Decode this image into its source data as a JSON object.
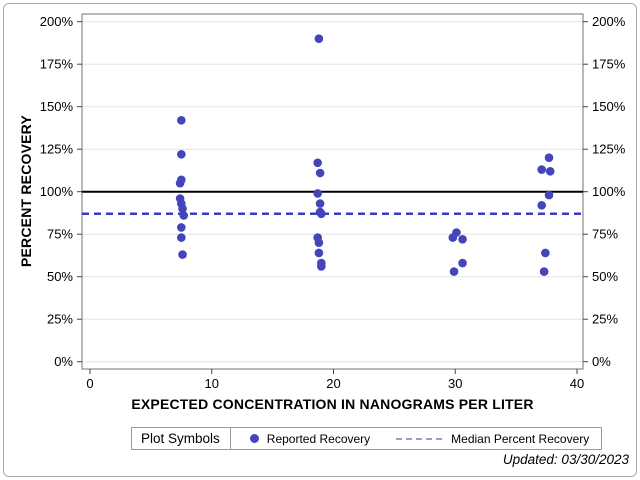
{
  "chart_data": {
    "type": "scatter",
    "title": "",
    "xlabel": "EXPECTED CONCENTRATION IN NANOGRAMS PER LITER",
    "ylabel": "PERCENT RECOVERY",
    "xlim": [
      0,
      40
    ],
    "ylim": [
      0,
      200
    ],
    "grid": true,
    "y_axis_mirrored": true,
    "x_ticks": {
      "values": [
        0,
        10,
        20,
        30,
        40
      ],
      "labels": [
        "0",
        "10",
        "20",
        "30",
        "40"
      ]
    },
    "y_ticks": {
      "values": [
        0,
        25,
        50,
        75,
        100,
        125,
        150,
        175,
        200
      ],
      "labels": [
        "0%",
        "25%",
        "50%",
        "75%",
        "100%",
        "125%",
        "150%",
        "175%",
        "200%"
      ]
    },
    "series": [
      {
        "name": "Reported Recovery",
        "marker": "filled-circle",
        "color": "#4444bb",
        "points": [
          [
            7.5,
            142
          ],
          [
            7.5,
            122
          ],
          [
            7.5,
            107
          ],
          [
            7.4,
            105
          ],
          [
            7.4,
            96
          ],
          [
            7.5,
            93
          ],
          [
            7.6,
            90
          ],
          [
            7.7,
            86
          ],
          [
            7.5,
            79
          ],
          [
            7.5,
            73
          ],
          [
            7.6,
            63
          ],
          [
            18.8,
            190
          ],
          [
            18.7,
            117
          ],
          [
            18.9,
            111
          ],
          [
            18.7,
            99
          ],
          [
            18.9,
            93
          ],
          [
            18.9,
            88
          ],
          [
            19.0,
            87
          ],
          [
            18.7,
            73
          ],
          [
            18.8,
            70
          ],
          [
            18.8,
            64
          ],
          [
            19.0,
            58
          ],
          [
            19.0,
            56
          ],
          [
            30.1,
            76
          ],
          [
            29.8,
            73
          ],
          [
            30.6,
            72
          ],
          [
            30.6,
            58
          ],
          [
            29.9,
            53
          ],
          [
            37.7,
            120
          ],
          [
            37.1,
            113
          ],
          [
            37.8,
            112
          ],
          [
            37.7,
            98
          ],
          [
            37.1,
            92
          ],
          [
            37.4,
            64
          ],
          [
            37.3,
            53
          ]
        ]
      }
    ],
    "reference_lines": [
      {
        "name": "100 Percent Recovery",
        "y": 100,
        "style": "solid",
        "color": "#000000",
        "width": 2
      },
      {
        "name": "Median Percent Recovery",
        "y": 87,
        "style": "dashed",
        "color": "#3b3bc4",
        "width": 2.5
      }
    ],
    "legend_position": "bottom"
  },
  "legend": {
    "title": "Plot Symbols",
    "items": [
      {
        "label": "Reported Recovery",
        "symbol": "dot"
      },
      {
        "label": "Median Percent Recovery",
        "symbol": "dashed-line"
      }
    ]
  },
  "footer": {
    "updated": "Updated: 03/30/2023"
  },
  "colors": {
    "marker": "#4444bb",
    "median_line": "#3b3bc4",
    "reference_line": "#000000",
    "legend_dash": "#9a9ad1",
    "grid": "#e3e3e3",
    "frame": "#8a8a8a",
    "tick": "#444444",
    "outer_border": "#a9a9a9"
  }
}
